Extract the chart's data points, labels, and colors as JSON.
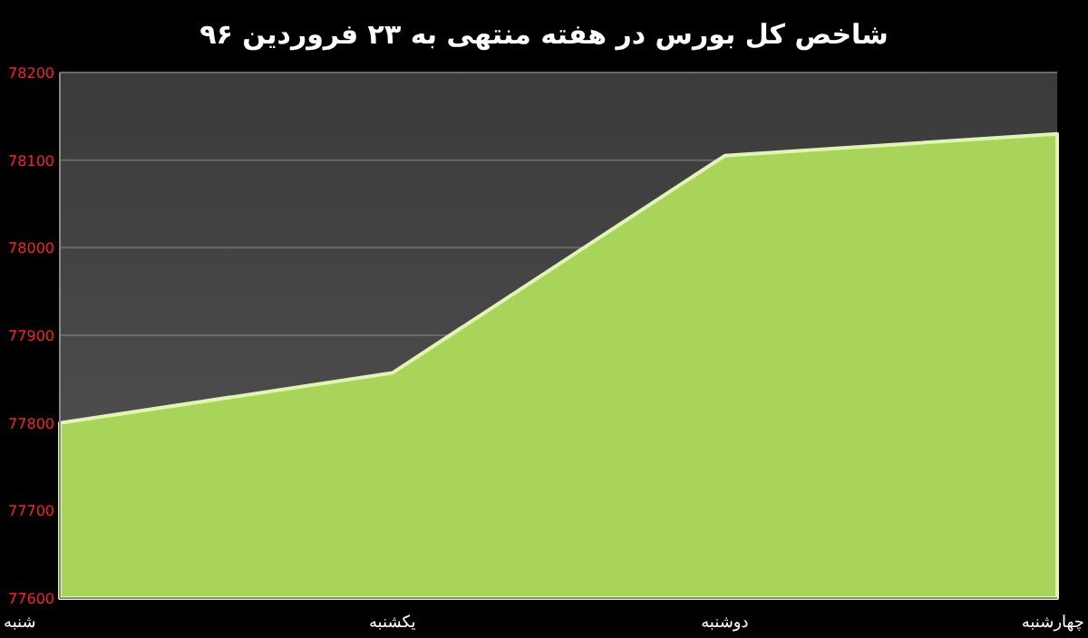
{
  "chart_data": {
    "type": "area",
    "title": "شاخص کل بورس در هفته منتهی به ۲۳ فروردین ۹۶",
    "categories": [
      "شنبه",
      "یکشنبه",
      "دوشنبه",
      "چهارشنبه"
    ],
    "series": [
      {
        "color": "#a8d45a",
        "values": [
          77800,
          77857,
          78105,
          78130
        ]
      }
    ],
    "ylim": [
      77600,
      78200
    ],
    "yticks": [
      77600,
      77700,
      77800,
      77900,
      78000,
      78100,
      78200
    ],
    "grid": "y"
  }
}
